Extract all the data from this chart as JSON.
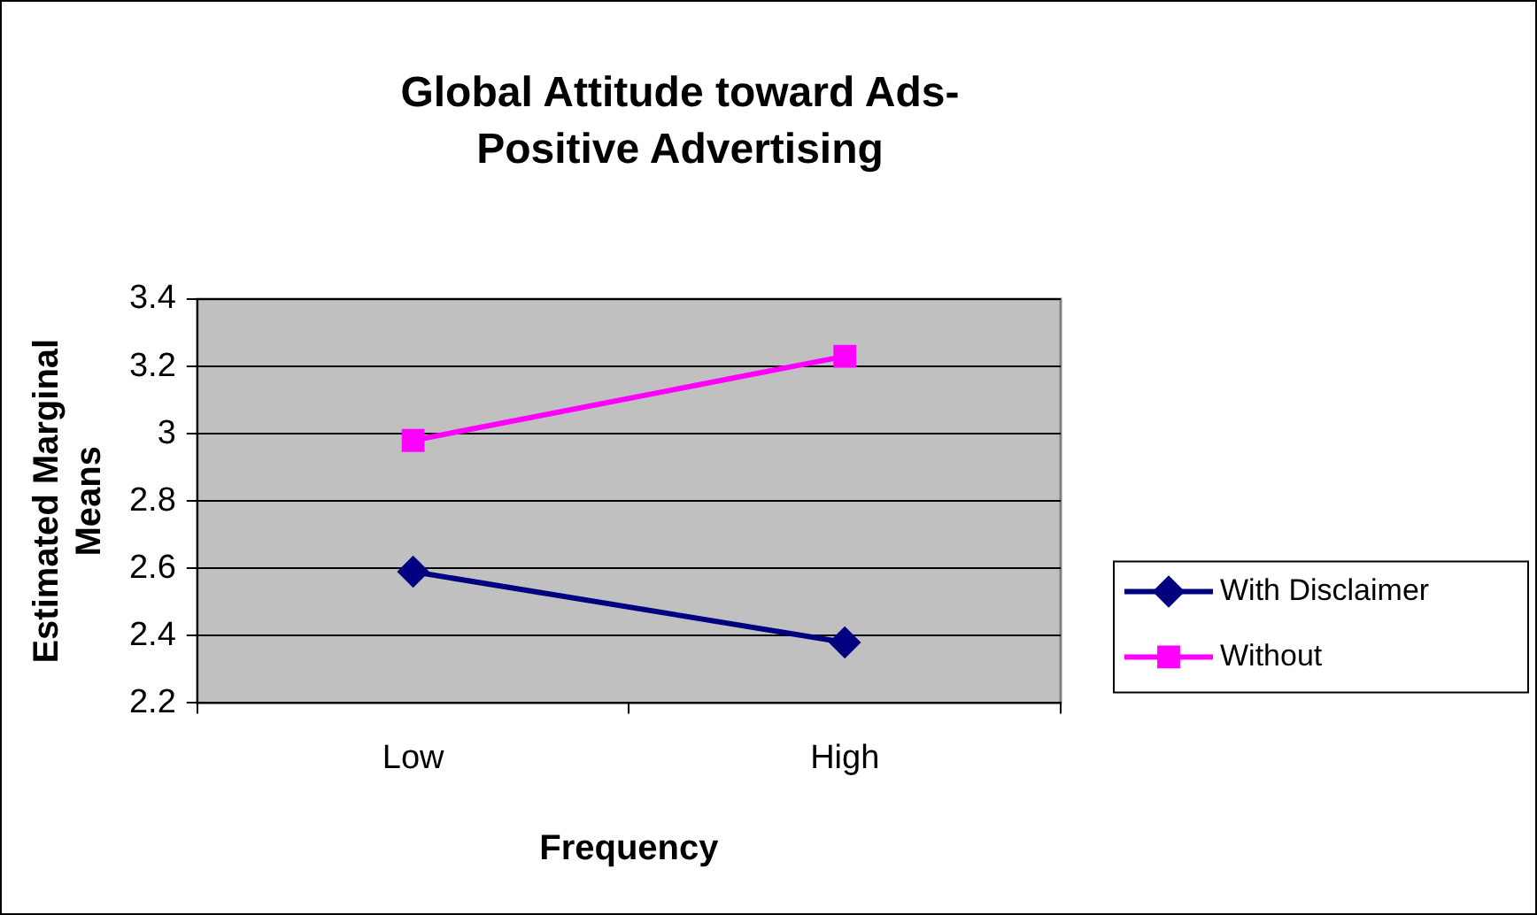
{
  "chart_data": {
    "type": "line",
    "title": "Global Attitude toward Ads-Positive Advertising",
    "xlabel": "Frequency",
    "ylabel": "Estimated Marginal Means",
    "categories": [
      "Low",
      "High"
    ],
    "series": [
      {
        "name": "With Disclaimer",
        "color": "#000080",
        "values": [
          2.59,
          2.38
        ],
        "marker": "diamond"
      },
      {
        "name": "Without",
        "color": "#ff00ff",
        "values": [
          2.98,
          3.23
        ],
        "marker": "square"
      }
    ],
    "ylim": [
      2.2,
      3.4
    ],
    "yticks": [
      2.2,
      2.4,
      2.6,
      2.8,
      3,
      3.2,
      3.4
    ],
    "grid": "y",
    "legend": "right"
  }
}
